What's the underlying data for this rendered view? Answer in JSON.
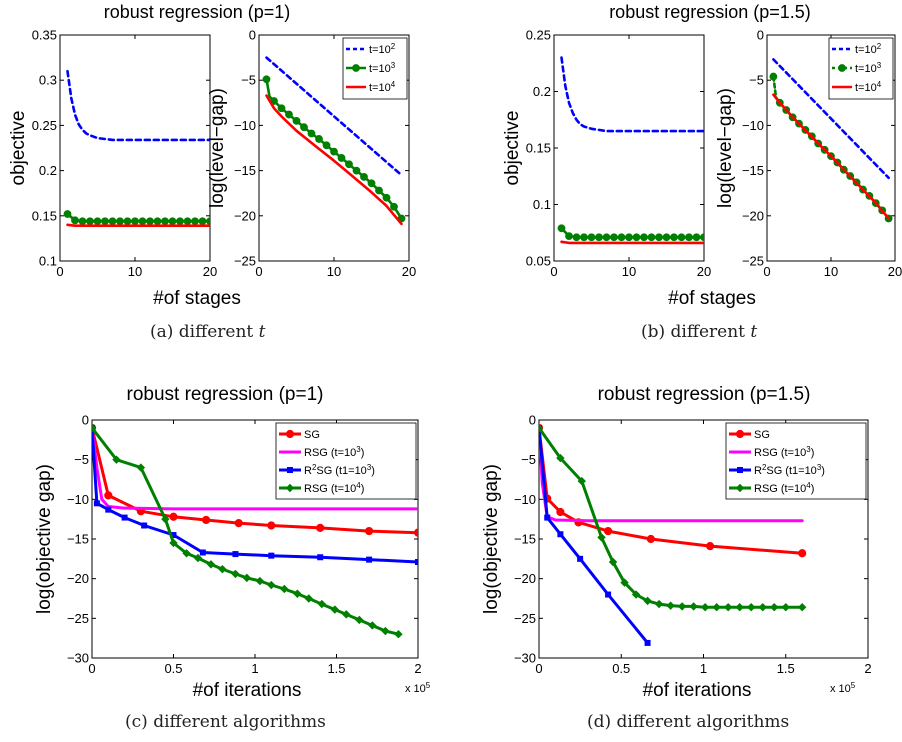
{
  "captions": {
    "a": {
      "label": "(a) different ",
      "math": "t"
    },
    "b": {
      "label": "(b) different ",
      "math": "t"
    },
    "c": {
      "label": "(c) different algorithms"
    },
    "d": {
      "label": "(d) different algorithms"
    }
  },
  "colors": {
    "blue": "#0000ff",
    "green": "#008000",
    "red": "#ff0000",
    "magenta": "#ff00ff",
    "axis": "#000000"
  },
  "chart_data": [
    {
      "id": "a-objective",
      "type": "line",
      "title": "robust regression (p=1)",
      "xlabel": "#of stages",
      "ylabel": "objective",
      "xlim": [
        0,
        20
      ],
      "ylim": [
        0.1,
        0.35
      ],
      "xticks": [
        0,
        10,
        20
      ],
      "yticks": [
        0.1,
        0.15,
        0.2,
        0.25,
        0.3,
        0.35
      ],
      "xtick_labels": [
        "0",
        "10",
        "20"
      ],
      "ytick_labels": [
        "0.1",
        "0.15",
        "0.2",
        "0.25",
        "0.3",
        "0.35"
      ],
      "series": [
        {
          "style": "dashed",
          "color": "#0000ff",
          "x": [
            1,
            1.5,
            2,
            2.5,
            3,
            3.5,
            4,
            5,
            6,
            7,
            8,
            10,
            12,
            15,
            18,
            20
          ],
          "y": [
            0.31,
            0.28,
            0.262,
            0.251,
            0.245,
            0.241,
            0.239,
            0.236,
            0.235,
            0.234,
            0.234,
            0.234,
            0.234,
            0.234,
            0.234,
            0.234
          ]
        },
        {
          "style": "solid-marker",
          "color": "#008000",
          "x": [
            1,
            2,
            3,
            4,
            5,
            6,
            7,
            8,
            9,
            10,
            11,
            12,
            13,
            14,
            15,
            16,
            17,
            18,
            19,
            20
          ],
          "y": [
            0.152,
            0.145,
            0.144,
            0.144,
            0.144,
            0.144,
            0.144,
            0.144,
            0.144,
            0.144,
            0.144,
            0.144,
            0.144,
            0.144,
            0.144,
            0.144,
            0.144,
            0.144,
            0.144,
            0.144
          ]
        },
        {
          "style": "solid",
          "color": "#ff0000",
          "x": [
            1,
            2,
            3,
            5,
            10,
            15,
            20
          ],
          "y": [
            0.14,
            0.139,
            0.139,
            0.139,
            0.139,
            0.139,
            0.139
          ]
        }
      ]
    },
    {
      "id": "a-levelgap",
      "type": "line",
      "title": "",
      "xlabel": "",
      "ylabel": "log(level−gap)",
      "xlim": [
        0,
        20
      ],
      "ylim": [
        -25,
        0
      ],
      "xticks": [
        0,
        10,
        20
      ],
      "yticks": [
        -25,
        -20,
        -15,
        -10,
        -5,
        0
      ],
      "xtick_labels": [
        "0",
        "10",
        "20"
      ],
      "ytick_labels": [
        "−25",
        "−20",
        "−15",
        "−10",
        "−5",
        "0"
      ],
      "legend": {
        "position": "top-right",
        "entries": [
          {
            "base": "t=10",
            "exp": "2",
            "color": "#0000ff",
            "style": "dashed"
          },
          {
            "base": "t=10",
            "exp": "3",
            "color": "#008000",
            "style": "solid-marker"
          },
          {
            "base": "t=10",
            "exp": "4",
            "color": "#ff0000",
            "style": "solid"
          }
        ]
      },
      "series": [
        {
          "style": "dashed",
          "color": "#0000ff",
          "x": [
            1,
            19
          ],
          "y": [
            -2.5,
            -15.5
          ]
        },
        {
          "style": "solid-marker",
          "color": "#008000",
          "x": [
            1,
            1.4,
            2,
            3,
            4,
            5,
            6,
            7,
            8,
            9,
            10,
            11,
            12,
            13,
            14,
            15,
            16,
            17,
            18,
            19
          ],
          "y": [
            -4.9,
            -6.8,
            -7.3,
            -8.1,
            -8.8,
            -9.5,
            -10.2,
            -10.9,
            -11.5,
            -12.2,
            -12.9,
            -13.6,
            -14.3,
            -15.0,
            -15.7,
            -16.4,
            -17.2,
            -18.0,
            -19.0,
            -20.3
          ]
        },
        {
          "style": "solid",
          "color": "#ff0000",
          "x": [
            1,
            2,
            3,
            5,
            8,
            10,
            12,
            15,
            17,
            19
          ],
          "y": [
            -6.7,
            -8.1,
            -9.0,
            -10.6,
            -12.6,
            -13.9,
            -15.3,
            -17.4,
            -18.9,
            -20.9
          ]
        }
      ]
    },
    {
      "id": "b-objective",
      "type": "line",
      "title": "robust regression (p=1.5)",
      "xlabel": "#of stages",
      "ylabel": "objective",
      "xlim": [
        0,
        20
      ],
      "ylim": [
        0.05,
        0.25
      ],
      "xticks": [
        0,
        10,
        20
      ],
      "yticks": [
        0.05,
        0.1,
        0.15,
        0.2,
        0.25
      ],
      "xtick_labels": [
        "0",
        "10",
        "20"
      ],
      "ytick_labels": [
        "0.05",
        "0.1",
        "0.15",
        "0.2",
        "0.25"
      ],
      "series": [
        {
          "style": "dashed",
          "color": "#0000ff",
          "x": [
            1,
            1.5,
            2,
            2.5,
            3,
            3.5,
            4,
            5,
            6,
            7,
            8,
            10,
            12,
            15,
            18,
            20
          ],
          "y": [
            0.23,
            0.205,
            0.19,
            0.181,
            0.175,
            0.171,
            0.169,
            0.167,
            0.166,
            0.165,
            0.165,
            0.165,
            0.165,
            0.165,
            0.165,
            0.165
          ]
        },
        {
          "style": "solid-marker",
          "color": "#008000",
          "x": [
            1,
            2,
            3,
            4,
            5,
            6,
            7,
            8,
            9,
            10,
            11,
            12,
            13,
            14,
            15,
            16,
            17,
            18,
            19,
            20
          ],
          "y": [
            0.079,
            0.072,
            0.071,
            0.071,
            0.071,
            0.071,
            0.071,
            0.071,
            0.071,
            0.071,
            0.071,
            0.071,
            0.071,
            0.071,
            0.071,
            0.071,
            0.071,
            0.071,
            0.071,
            0.071
          ]
        },
        {
          "style": "solid",
          "color": "#ff0000",
          "x": [
            1,
            2,
            3,
            5,
            10,
            15,
            20
          ],
          "y": [
            0.067,
            0.066,
            0.066,
            0.066,
            0.066,
            0.066,
            0.066
          ]
        }
      ]
    },
    {
      "id": "b-levelgap",
      "type": "line",
      "title": "",
      "xlabel": "",
      "ylabel": "log(level−gap)",
      "xlim": [
        0,
        20
      ],
      "ylim": [
        -25,
        0
      ],
      "xticks": [
        0,
        10,
        20
      ],
      "yticks": [
        -25,
        -20,
        -15,
        -10,
        -5,
        0
      ],
      "xtick_labels": [
        "0",
        "10",
        "20"
      ],
      "ytick_labels": [
        "−25",
        "−20",
        "−15",
        "−10",
        "−5",
        "0"
      ],
      "legend": {
        "position": "top-right",
        "entries": [
          {
            "base": "t=10",
            "exp": "2",
            "color": "#0000ff",
            "style": "dashed"
          },
          {
            "base": "t=10",
            "exp": "3",
            "color": "#008000",
            "style": "dashed-marker"
          },
          {
            "base": "t=10",
            "exp": "4",
            "color": "#ff0000",
            "style": "solid"
          }
        ]
      },
      "series": [
        {
          "style": "dashed",
          "color": "#0000ff",
          "x": [
            1,
            19
          ],
          "y": [
            -2.7,
            -15.8
          ]
        },
        {
          "style": "dashed-marker",
          "color": "#008000",
          "x": [
            1,
            1.4,
            2,
            3,
            4,
            5,
            6,
            7,
            8,
            9,
            10,
            11,
            12,
            13,
            14,
            15,
            16,
            17,
            18,
            19
          ],
          "y": [
            -4.6,
            -6.9,
            -7.5,
            -8.3,
            -9.1,
            -9.8,
            -10.5,
            -11.2,
            -12.0,
            -12.7,
            -13.4,
            -14.1,
            -14.9,
            -15.6,
            -16.3,
            -17.1,
            -17.8,
            -18.6,
            -19.4,
            -20.3
          ]
        },
        {
          "style": "solid",
          "color": "#ff0000",
          "x": [
            1,
            2,
            3,
            5,
            8,
            10,
            12,
            15,
            17,
            19
          ],
          "y": [
            -6.6,
            -7.5,
            -8.3,
            -9.8,
            -12.0,
            -13.4,
            -14.9,
            -17.1,
            -18.6,
            -20.3
          ]
        }
      ]
    },
    {
      "id": "c",
      "type": "line",
      "title": "robust regression (p=1)",
      "xlabel": "#of iterations",
      "ylabel": "log(objective gap)",
      "x_multiplier": "x 10",
      "x_multiplier_exp": "5",
      "xlim": [
        0,
        2
      ],
      "ylim": [
        -30,
        0
      ],
      "xticks": [
        0,
        0.5,
        1,
        1.5,
        2
      ],
      "yticks": [
        -30,
        -25,
        -20,
        -15,
        -10,
        -5,
        0
      ],
      "xtick_labels": [
        "0",
        "0.5",
        "1",
        "1.5",
        "2"
      ],
      "ytick_labels": [
        "−30",
        "−25",
        "−20",
        "−15",
        "−10",
        "−5",
        "0"
      ],
      "legend": {
        "position": "top-right",
        "entries": [
          {
            "base": "SG",
            "exp": "",
            "suffix": "",
            "color": "#ff0000",
            "marker": "circle"
          },
          {
            "base": "RSG (t=10",
            "exp": "3",
            "suffix": ")",
            "color": "#ff00ff",
            "marker": "none"
          },
          {
            "base": "R",
            "exp": "2",
            "suffix": "SG (t1=10",
            "exp2": "3",
            "suffix2": ")",
            "color": "#0000ff",
            "marker": "square"
          },
          {
            "base": "RSG (t=10",
            "exp": "4",
            "suffix": ")",
            "color": "#008000",
            "marker": "diamond"
          }
        ]
      },
      "series": [
        {
          "name": "SG",
          "color": "#ff0000",
          "marker": "circle",
          "x": [
            0,
            0.1,
            0.3,
            0.5,
            0.7,
            0.9,
            1.1,
            1.4,
            1.7,
            2.0
          ],
          "y": [
            -1,
            -9.5,
            -11.5,
            -12.2,
            -12.6,
            -13.0,
            -13.3,
            -13.6,
            -14.0,
            -14.2
          ]
        },
        {
          "name": "RSG (t=10^3)",
          "color": "#ff00ff",
          "marker": "none",
          "x": [
            0,
            0.03,
            0.06,
            0.1,
            0.2,
            0.5,
            1.0,
            1.5,
            2.0
          ],
          "y": [
            -1,
            -6,
            -10,
            -10.9,
            -11.1,
            -11.2,
            -11.2,
            -11.2,
            -11.2
          ]
        },
        {
          "name": "R2SG (t1=10^3)",
          "color": "#0000ff",
          "marker": "square",
          "x": [
            0,
            0.03,
            0.1,
            0.2,
            0.32,
            0.5,
            0.68,
            0.88,
            1.1,
            1.4,
            1.7,
            2.0
          ],
          "y": [
            -1,
            -10.5,
            -11.3,
            -12.3,
            -13.3,
            -14.5,
            -16.7,
            -16.9,
            -17.1,
            -17.3,
            -17.6,
            -17.9
          ]
        },
        {
          "name": "RSG (t=10^4)",
          "color": "#008000",
          "marker": "diamond",
          "x": [
            0,
            0.15,
            0.3,
            0.45,
            0.5,
            0.58,
            0.65,
            0.73,
            0.8,
            0.88,
            0.95,
            1.03,
            1.1,
            1.18,
            1.26,
            1.33,
            1.41,
            1.49,
            1.56,
            1.64,
            1.72,
            1.8,
            1.88
          ],
          "y": [
            -1,
            -5,
            -6,
            -12.5,
            -15.5,
            -16.8,
            -17.4,
            -18.2,
            -18.8,
            -19.4,
            -19.9,
            -20.3,
            -20.8,
            -21.3,
            -21.9,
            -22.5,
            -23.2,
            -23.9,
            -24.5,
            -25.2,
            -25.9,
            -26.6,
            -27.0
          ]
        }
      ]
    },
    {
      "id": "d",
      "type": "line",
      "title": "robust regression (p=1.5)",
      "xlabel": "#of iterations",
      "ylabel": "log(objective gap)",
      "x_multiplier": "x 10",
      "x_multiplier_exp": "5",
      "xlim": [
        0,
        2
      ],
      "ylim": [
        -30,
        0
      ],
      "xticks": [
        0,
        0.5,
        1,
        1.5,
        2
      ],
      "yticks": [
        -30,
        -25,
        -20,
        -15,
        -10,
        -5,
        0
      ],
      "xtick_labels": [
        "0",
        "0.5",
        "1",
        "1.5",
        "2"
      ],
      "ytick_labels": [
        "−30",
        "−25",
        "−20",
        "−15",
        "−10",
        "−5",
        "0"
      ],
      "legend": {
        "position": "top-right",
        "entries": [
          {
            "base": "SG",
            "exp": "",
            "suffix": "",
            "color": "#ff0000",
            "marker": "circle"
          },
          {
            "base": "RSG (t=10",
            "exp": "3",
            "suffix": ")",
            "color": "#ff00ff",
            "marker": "none"
          },
          {
            "base": "R",
            "exp": "2",
            "suffix": "SG (t1=10",
            "exp2": "3",
            "suffix2": ")",
            "color": "#0000ff",
            "marker": "square"
          },
          {
            "base": "RSG (t=10",
            "exp": "4",
            "suffix": ")",
            "color": "#008000",
            "marker": "diamond"
          }
        ]
      },
      "series": [
        {
          "name": "SG",
          "color": "#ff0000",
          "marker": "circle",
          "x": [
            0,
            0.05,
            0.13,
            0.24,
            0.42,
            0.68,
            1.04,
            1.6
          ],
          "y": [
            -1,
            -9.9,
            -11.6,
            -12.9,
            -14.0,
            -15.0,
            -15.9,
            -16.8
          ]
        },
        {
          "name": "RSG (t=10^3)",
          "color": "#ff00ff",
          "marker": "none",
          "x": [
            0,
            0.02,
            0.05,
            0.1,
            0.3,
            0.6,
            1.0,
            1.6
          ],
          "y": [
            -1,
            -8,
            -12.2,
            -12.6,
            -12.7,
            -12.7,
            -12.7,
            -12.7
          ]
        },
        {
          "name": "R2SG (t1=10^3)",
          "color": "#0000ff",
          "marker": "square",
          "x": [
            0,
            0.05,
            0.13,
            0.25,
            0.42,
            0.66
          ],
          "y": [
            -1,
            -12.3,
            -14.4,
            -17.5,
            -22.0,
            -28.1
          ]
        },
        {
          "name": "RSG (t=10^4)",
          "color": "#008000",
          "marker": "diamond",
          "x": [
            0,
            0.13,
            0.26,
            0.38,
            0.45,
            0.52,
            0.59,
            0.66,
            0.73,
            0.8,
            0.87,
            0.94,
            1.01,
            1.08,
            1.15,
            1.22,
            1.29,
            1.36,
            1.43,
            1.5,
            1.6
          ],
          "y": [
            -1,
            -4.8,
            -7.7,
            -14.8,
            -17.9,
            -20.5,
            -22.0,
            -22.8,
            -23.2,
            -23.4,
            -23.5,
            -23.5,
            -23.6,
            -23.6,
            -23.6,
            -23.6,
            -23.6,
            -23.6,
            -23.6,
            -23.6,
            -23.6
          ]
        }
      ]
    }
  ]
}
